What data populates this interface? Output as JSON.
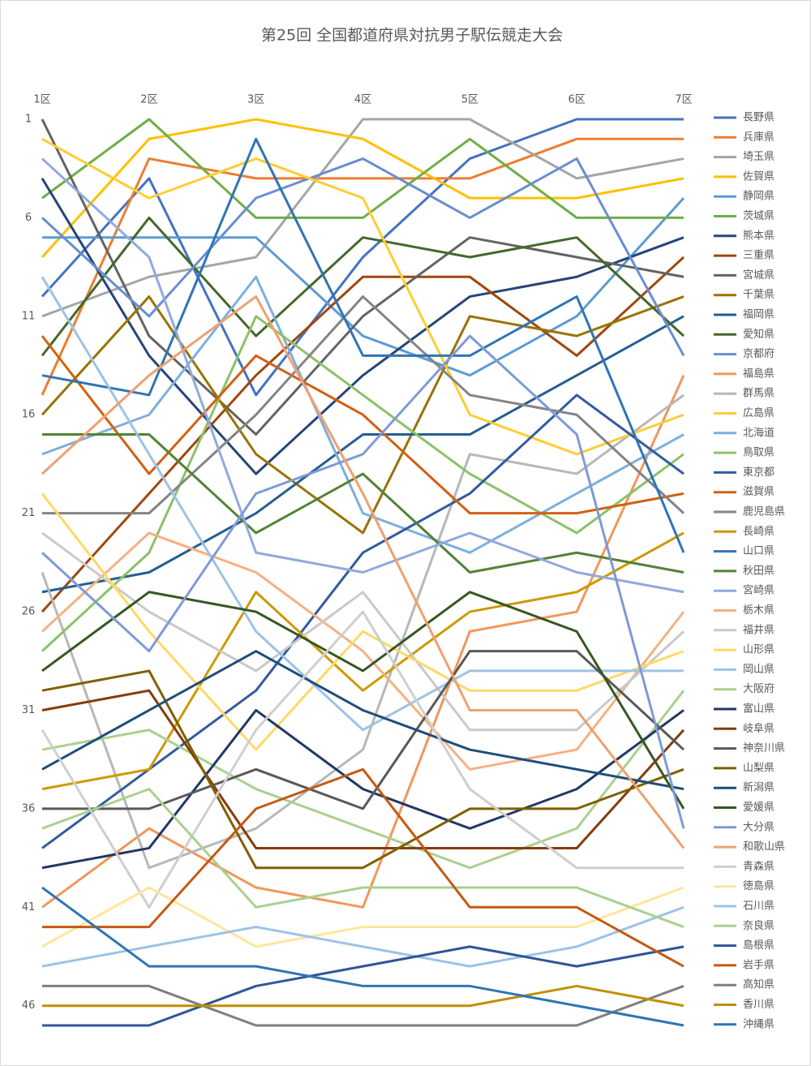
{
  "chart_data": {
    "type": "line",
    "title": "第25回 全国都道府県対抗男子駅伝競走大会",
    "categories": [
      "1区",
      "2区",
      "3区",
      "4区",
      "5区",
      "6区",
      "7区"
    ],
    "ylim": [
      1,
      47
    ],
    "y_reversed": true,
    "yticks": [
      1,
      6,
      11,
      16,
      21,
      26,
      31,
      36,
      41,
      46
    ],
    "legend": "right",
    "series": [
      {
        "name": "長野県",
        "color": "#4472c4",
        "values": [
          10,
          4,
          15,
          8,
          3,
          1,
          1
        ]
      },
      {
        "name": "兵庫県",
        "color": "#ed7d31",
        "values": [
          15,
          3,
          4,
          4,
          4,
          2,
          2
        ]
      },
      {
        "name": "埼玉県",
        "color": "#a5a5a5",
        "values": [
          11,
          9,
          8,
          1,
          1,
          4,
          3
        ]
      },
      {
        "name": "佐賀県",
        "color": "#ffc000",
        "values": [
          8,
          2,
          1,
          2,
          5,
          5,
          4
        ]
      },
      {
        "name": "静岡県",
        "color": "#5b9bd5",
        "values": [
          7,
          7,
          7,
          12,
          14,
          11,
          5
        ]
      },
      {
        "name": "茨城県",
        "color": "#70ad47",
        "values": [
          5,
          1,
          6,
          6,
          2,
          6,
          6
        ]
      },
      {
        "name": "熊本県",
        "color": "#264478",
        "values": [
          4,
          13,
          19,
          14,
          10,
          9,
          7
        ]
      },
      {
        "name": "三重県",
        "color": "#9e480e",
        "values": [
          26,
          20,
          14,
          9,
          9,
          13,
          8
        ]
      },
      {
        "name": "宮城県",
        "color": "#636363",
        "values": [
          1,
          12,
          17,
          11,
          7,
          8,
          9
        ]
      },
      {
        "name": "千葉県",
        "color": "#997300",
        "values": [
          16,
          10,
          18,
          22,
          11,
          12,
          10
        ]
      },
      {
        "name": "福岡県",
        "color": "#255e91",
        "values": [
          25,
          24,
          21,
          17,
          17,
          14,
          11
        ]
      },
      {
        "name": "愛知県",
        "color": "#43682b",
        "values": [
          13,
          6,
          12,
          7,
          8,
          7,
          12
        ]
      },
      {
        "name": "京都府",
        "color": "#698ed0",
        "values": [
          6,
          11,
          5,
          3,
          6,
          3,
          13
        ]
      },
      {
        "name": "福島県",
        "color": "#f1975a",
        "values": [
          41,
          37,
          40,
          41,
          27,
          26,
          14
        ]
      },
      {
        "name": "群馬県",
        "color": "#b7b7b7",
        "values": [
          24,
          39,
          37,
          33,
          18,
          19,
          15
        ]
      },
      {
        "name": "広島県",
        "color": "#ffcd33",
        "values": [
          2,
          5,
          3,
          5,
          16,
          18,
          16
        ]
      },
      {
        "name": "北海道",
        "color": "#7cafdd",
        "values": [
          18,
          16,
          9,
          21,
          23,
          20,
          17
        ]
      },
      {
        "name": "鳥取県",
        "color": "#8cc168",
        "values": [
          28,
          23,
          11,
          15,
          19,
          22,
          18
        ]
      },
      {
        "name": "東京都",
        "color": "#335aa1",
        "values": [
          38,
          34,
          30,
          23,
          20,
          15,
          19
        ]
      },
      {
        "name": "滋賀県",
        "color": "#d26012",
        "values": [
          12,
          19,
          13,
          16,
          21,
          21,
          20
        ]
      },
      {
        "name": "鹿児島県",
        "color": "#848484",
        "values": [
          21,
          21,
          16,
          10,
          15,
          16,
          21
        ]
      },
      {
        "name": "長崎県",
        "color": "#cc9a00",
        "values": [
          35,
          34,
          25,
          30,
          26,
          25,
          22
        ]
      },
      {
        "name": "山口県",
        "color": "#2e75b6",
        "values": [
          14,
          15,
          2,
          13,
          13,
          10,
          23
        ]
      },
      {
        "name": "秋田県",
        "color": "#548235",
        "values": [
          17,
          17,
          22,
          19,
          24,
          23,
          24
        ]
      },
      {
        "name": "宮崎県",
        "color": "#8faadc",
        "values": [
          3,
          8,
          23,
          24,
          22,
          24,
          25
        ]
      },
      {
        "name": "栃木県",
        "color": "#f4b183",
        "values": [
          27,
          22,
          24,
          28,
          34,
          33,
          26
        ]
      },
      {
        "name": "福井県",
        "color": "#c9c9c9",
        "values": [
          22,
          26,
          29,
          25,
          32,
          32,
          27
        ]
      },
      {
        "name": "山形県",
        "color": "#ffd966",
        "values": [
          20,
          27,
          33,
          27,
          30,
          30,
          28
        ]
      },
      {
        "name": "岡山県",
        "color": "#9dc3e6",
        "values": [
          9,
          18,
          27,
          32,
          29,
          29,
          29
        ]
      },
      {
        "name": "大阪府",
        "color": "#a9d18e",
        "values": [
          33,
          32,
          35,
          37,
          39,
          37,
          30
        ]
      },
      {
        "name": "富山県",
        "color": "#203864",
        "values": [
          39,
          38,
          31,
          35,
          37,
          35,
          31
        ]
      },
      {
        "name": "岐阜県",
        "color": "#843c0c",
        "values": [
          31,
          30,
          38,
          38,
          38,
          38,
          32
        ]
      },
      {
        "name": "神奈川県",
        "color": "#595959",
        "values": [
          36,
          36,
          34,
          36,
          28,
          28,
          33
        ]
      },
      {
        "name": "山梨県",
        "color": "#7f6000",
        "values": [
          30,
          29,
          39,
          39,
          36,
          36,
          34
        ]
      },
      {
        "name": "新潟県",
        "color": "#1f4e79",
        "values": [
          34,
          31,
          28,
          31,
          33,
          34,
          35
        ]
      },
      {
        "name": "愛媛県",
        "color": "#375623",
        "values": [
          29,
          25,
          26,
          29,
          25,
          27,
          36
        ]
      },
      {
        "name": "大分県",
        "color": "#7e9ad6",
        "values": [
          23,
          28,
          20,
          18,
          12,
          17,
          37
        ]
      },
      {
        "name": "和歌山県",
        "color": "#f0a070",
        "values": [
          19,
          14,
          10,
          20,
          31,
          31,
          38
        ]
      },
      {
        "name": "青森県",
        "color": "#d0cece",
        "values": [
          32,
          41,
          32,
          26,
          35,
          39,
          39
        ]
      },
      {
        "name": "徳島県",
        "color": "#ffe699",
        "values": [
          43,
          40,
          43,
          42,
          42,
          42,
          40
        ]
      },
      {
        "name": "石川県",
        "color": "#9dc3e6",
        "values": [
          44,
          43,
          42,
          43,
          44,
          43,
          41
        ]
      },
      {
        "name": "奈良県",
        "color": "#a9d18e",
        "values": [
          37,
          35,
          41,
          40,
          40,
          40,
          42
        ]
      },
      {
        "name": "島根県",
        "color": "#2f5597",
        "values": [
          47,
          47,
          45,
          44,
          43,
          44,
          43
        ]
      },
      {
        "name": "岩手県",
        "color": "#c55a11",
        "values": [
          42,
          42,
          36,
          34,
          41,
          41,
          44
        ]
      },
      {
        "name": "高知県",
        "color": "#7f7f7f",
        "values": [
          45,
          45,
          47,
          47,
          47,
          47,
          45
        ]
      },
      {
        "name": "香川県",
        "color": "#bf9000",
        "values": [
          46,
          46,
          46,
          46,
          46,
          45,
          46
        ]
      },
      {
        "name": "沖縄県",
        "color": "#2e75b6",
        "values": [
          40,
          44,
          44,
          45,
          45,
          46,
          47
        ]
      }
    ]
  }
}
